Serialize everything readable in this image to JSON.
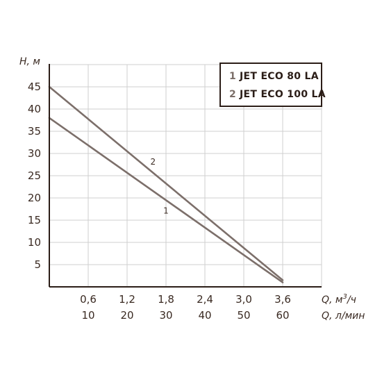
{
  "chart_data": {
    "type": "line",
    "ylabel": "H, м",
    "xlabel_primary": "Q, м³/ч",
    "xlabel_secondary": "Q, л/мин",
    "x_ticks_primary": [
      "0,6",
      "1,2",
      "1,8",
      "2,4",
      "3,0",
      "3,6"
    ],
    "x_ticks_secondary": [
      "10",
      "20",
      "30",
      "40",
      "50",
      "60"
    ],
    "y_ticks": [
      "5",
      "10",
      "15",
      "20",
      "25",
      "30",
      "35",
      "40",
      "45"
    ],
    "xlim": [
      0,
      4.2
    ],
    "ylim": [
      0,
      50
    ],
    "grid": true,
    "legend_position": "top-right",
    "series": [
      {
        "name": "JET ECO 80 LA",
        "number": "1",
        "x": [
          0,
          3.6
        ],
        "y": [
          38,
          1
        ]
      },
      {
        "name": "JET ECO 100 LA",
        "number": "2",
        "x": [
          0,
          3.6
        ],
        "y": [
          45,
          1.5
        ]
      }
    ],
    "line_labels": [
      {
        "text": "1",
        "x": 1.8,
        "y": 16.5
      },
      {
        "text": "2",
        "x": 1.6,
        "y": 27.5
      }
    ]
  },
  "legend": [
    {
      "number": "1",
      "label": "JET ECO 80 LA"
    },
    {
      "number": "2",
      "label": "JET ECO 100 LA"
    }
  ],
  "colors": {
    "line": "#7c6f6a",
    "axis": "#2b1d17",
    "grid": "#cfcfcf"
  }
}
